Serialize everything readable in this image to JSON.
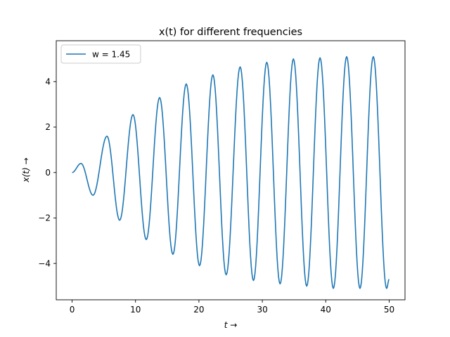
{
  "chart_data": {
    "type": "line",
    "title": "x(t) for different frequencies",
    "xlabel": "t →",
    "ylabel": "x(t) →",
    "xlim": [
      -2.5,
      52.5
    ],
    "ylim": [
      -5.6,
      5.8
    ],
    "xticks": [
      0,
      10,
      20,
      30,
      40,
      50
    ],
    "yticks": [
      -4,
      -2,
      0,
      2,
      4
    ],
    "xtick_labels": [
      "0",
      "10",
      "20",
      "30",
      "40",
      "50"
    ],
    "ytick_labels": [
      "−4",
      "−2",
      "0",
      "2",
      "4"
    ],
    "grid": false,
    "legend_position": "upper-left",
    "series": [
      {
        "name": "w = 1.45",
        "color": "#1f77b4",
        "x": [
          0,
          1.4,
          3.3,
          5.5,
          7.5,
          9.6,
          11.7,
          13.8,
          15.9,
          18.0,
          20.1,
          22.2,
          24.3,
          26.5,
          28.6,
          30.7,
          32.8,
          34.9,
          37.0,
          39.1,
          41.2,
          43.3,
          45.4,
          47.5,
          49.6,
          50
        ],
        "y": [
          0,
          0.4,
          -1.0,
          1.6,
          -2.1,
          2.55,
          -2.95,
          3.3,
          -3.6,
          3.9,
          -4.1,
          4.3,
          -4.5,
          4.65,
          -4.75,
          4.85,
          -4.9,
          5.0,
          -5.0,
          5.05,
          -5.1,
          5.1,
          -5.1,
          5.1,
          -5.1,
          -4.7
        ]
      }
    ]
  }
}
